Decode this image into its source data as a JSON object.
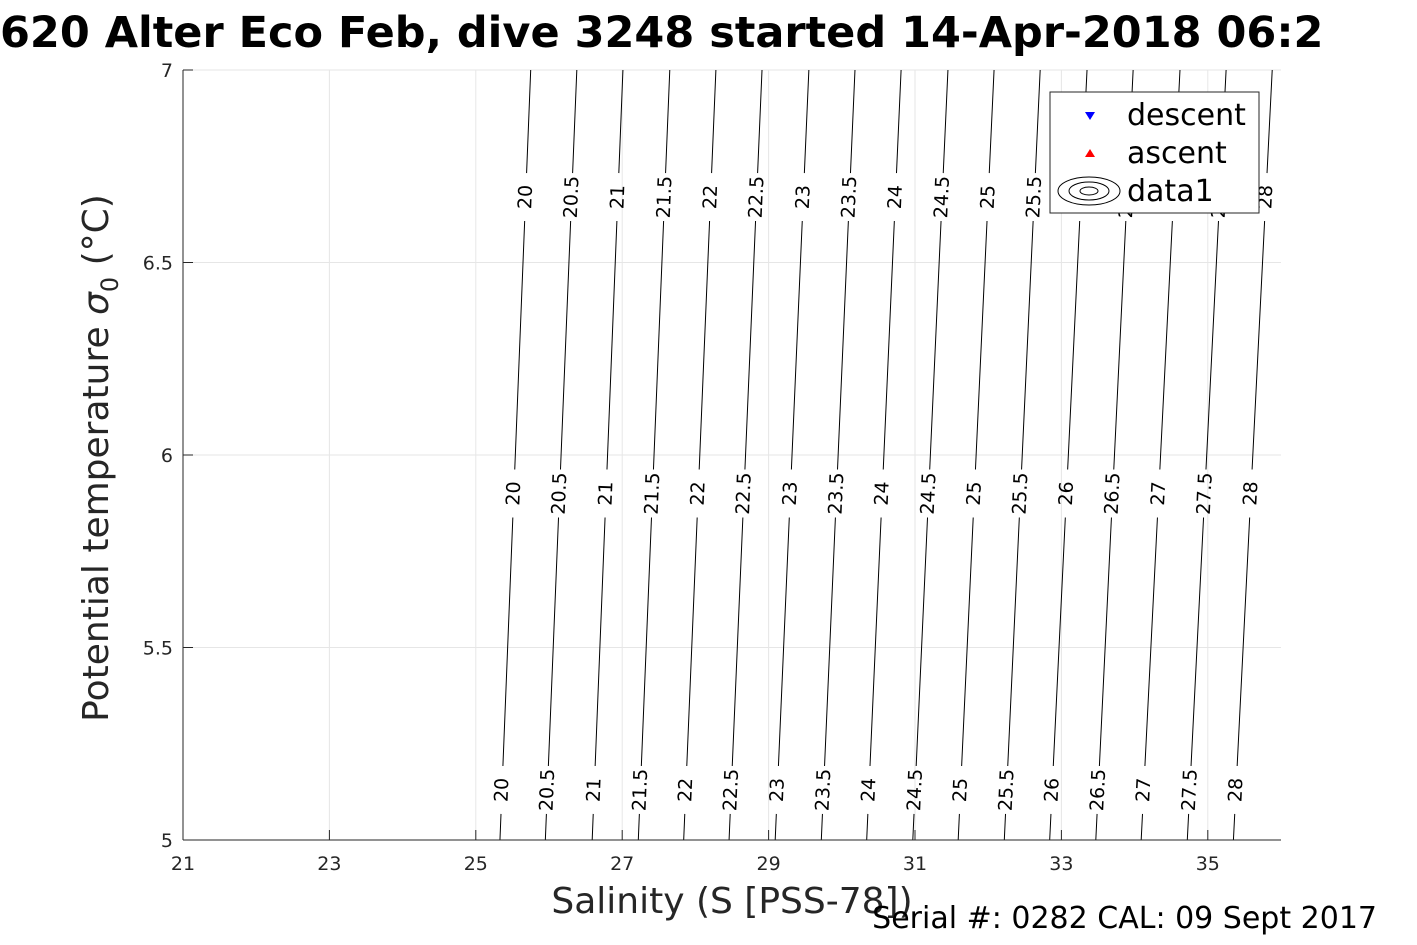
{
  "figure": {
    "title": "620 Alter Eco Feb, dive 3248 started 14-Apr-2018 06:2",
    "footer": "Serial #: 0282  CAL: 09 Sept 2017"
  },
  "chart_data": {
    "type": "contour",
    "title": "620 Alter Eco Feb, dive 3248 started 14-Apr-2018 06:2",
    "xlabel": "Salinity (S [PSS-78])",
    "ylabel": "Potential temperature",
    "ylabel_symbol": "σ",
    "ylabel_subscript": "0",
    "ylabel_unit": " (°C)",
    "xlim": [
      21,
      36
    ],
    "ylim": [
      5,
      7
    ],
    "xticks": [
      21,
      23,
      25,
      27,
      29,
      31,
      33,
      35
    ],
    "yticks": [
      5,
      5.5,
      6,
      6.5,
      7
    ],
    "grid": true,
    "legend": {
      "placement": "top-right",
      "entries": [
        {
          "label": "descent",
          "marker": "triangle-down",
          "color": "#0000ff"
        },
        {
          "label": "ascent",
          "marker": "triangle-up",
          "color": "#ff0000"
        },
        {
          "label": "data1",
          "marker": "contour-ellipses",
          "color": "#000000"
        }
      ]
    },
    "series": [
      {
        "name": "descent",
        "values": []
      },
      {
        "name": "ascent",
        "values": []
      }
    ],
    "contours": [
      {
        "level": "20",
        "x_at_5": 25.33,
        "x_at_7": 25.75
      },
      {
        "level": "20.5",
        "x_at_5": 25.95,
        "x_at_7": 26.38
      },
      {
        "level": "21",
        "x_at_5": 26.59,
        "x_at_7": 27.01
      },
      {
        "level": "21.5",
        "x_at_5": 27.22,
        "x_at_7": 27.65
      },
      {
        "level": "22",
        "x_at_5": 27.84,
        "x_at_7": 28.28
      },
      {
        "level": "22.5",
        "x_at_5": 28.46,
        "x_at_7": 28.91
      },
      {
        "level": "23",
        "x_at_5": 29.09,
        "x_at_7": 29.55
      },
      {
        "level": "23.5",
        "x_at_5": 29.72,
        "x_at_7": 30.18
      },
      {
        "level": "24",
        "x_at_5": 30.34,
        "x_at_7": 30.81
      },
      {
        "level": "24.5",
        "x_at_5": 30.97,
        "x_at_7": 31.45
      },
      {
        "level": "25",
        "x_at_5": 31.59,
        "x_at_7": 32.08
      },
      {
        "level": "25.5",
        "x_at_5": 32.22,
        "x_at_7": 32.71
      },
      {
        "level": "26",
        "x_at_5": 32.84,
        "x_at_7": 33.35
      },
      {
        "level": "26.5",
        "x_at_5": 33.47,
        "x_at_7": 33.98
      },
      {
        "level": "27",
        "x_at_5": 34.09,
        "x_at_7": 34.62
      },
      {
        "level": "27.5",
        "x_at_5": 34.72,
        "x_at_7": 35.25
      },
      {
        "level": "28",
        "x_at_5": 35.35,
        "x_at_7": 35.88
      }
    ],
    "label_rows_y": [
      5.13,
      5.9,
      6.67
    ]
  }
}
